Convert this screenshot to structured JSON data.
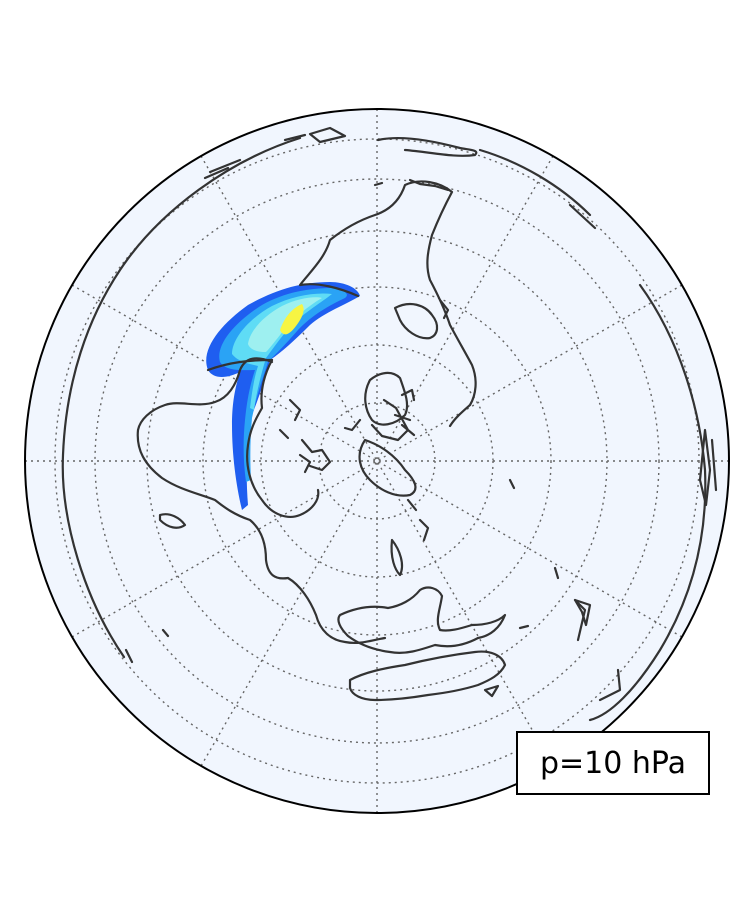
{
  "map": {
    "projection": "orthographic-polar",
    "hemisphere": "southern",
    "background_color": "#f1f6fe",
    "coastline_color": "#333333",
    "gridline_color": "#666666",
    "gridlines": "dotted",
    "contour_colors": [
      "#1f5ef0",
      "#2aa3f5",
      "#5fdcf5",
      "#9ef0f0",
      "#f7f542"
    ]
  },
  "label": {
    "text": "p=10 hPa",
    "placement": "bottom-right"
  }
}
